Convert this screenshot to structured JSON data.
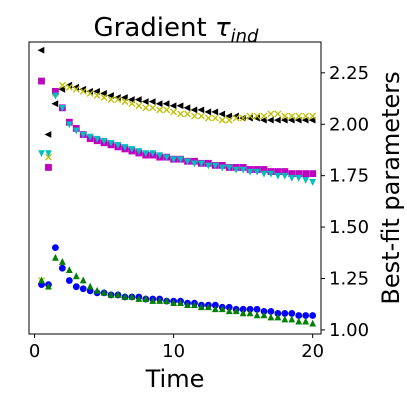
{
  "chart_data": {
    "type": "scatter",
    "title_main": "Gradient ",
    "title_tau": "τ",
    "title_sub": "ind",
    "xlabel": "Time",
    "ylabel": "Best-fit parameters",
    "xlim": [
      -0.4,
      20.6
    ],
    "ylim": [
      0.98,
      2.4
    ],
    "y_axis_side": "right",
    "grid": false,
    "legend": "none",
    "x_ticks": [
      0,
      10,
      20
    ],
    "y_ticks": [
      1.0,
      1.25,
      1.5,
      1.75,
      2.0,
      2.25
    ],
    "x_tick_labels": [
      "0",
      "10",
      "20"
    ],
    "y_tick_labels": [
      "1.00",
      "1.25",
      "1.50",
      "1.75",
      "2.00",
      "2.25"
    ],
    "series": [
      {
        "marker": "triangle-left",
        "color": "#000000",
        "x": [
          0.5,
          1.0,
          1.5,
          2.0,
          2.5,
          3.0,
          3.5,
          4.0,
          4.5,
          5.0,
          5.5,
          6.0,
          6.5,
          7.0,
          7.5,
          8.0,
          8.5,
          9.0,
          9.5,
          10.0,
          10.5,
          11.0,
          11.5,
          12.0,
          12.5,
          13.0,
          13.5,
          14.0,
          14.5,
          15.0,
          15.5,
          16.0,
          16.5,
          17.0,
          17.5,
          18.0,
          18.5,
          19.0,
          19.5,
          20.0
        ],
        "y": [
          2.36,
          1.95,
          2.1,
          2.17,
          2.19,
          2.18,
          2.17,
          2.16,
          2.16,
          2.15,
          2.14,
          2.13,
          2.13,
          2.12,
          2.12,
          2.11,
          2.11,
          2.1,
          2.1,
          2.09,
          2.09,
          2.08,
          2.07,
          2.07,
          2.06,
          2.06,
          2.05,
          2.04,
          2.04,
          2.03,
          2.03,
          2.03,
          2.02,
          2.02,
          2.02,
          2.02,
          2.02,
          2.02,
          2.02,
          2.02
        ]
      },
      {
        "marker": "x",
        "color": "#bfbf00",
        "x": [
          0.5,
          1.0,
          1.5,
          2.0,
          2.5,
          3.0,
          3.5,
          4.0,
          4.5,
          5.0,
          5.5,
          6.0,
          6.5,
          7.0,
          7.5,
          8.0,
          8.5,
          9.0,
          9.5,
          10.0,
          10.5,
          11.0,
          11.5,
          12.0,
          12.5,
          13.0,
          13.5,
          14.0,
          14.5,
          15.0,
          15.5,
          16.0,
          16.5,
          17.0,
          17.5,
          18.0,
          18.5,
          19.0,
          19.5,
          20.0
        ],
        "y": [
          1.24,
          1.84,
          2.15,
          2.19,
          2.18,
          2.17,
          2.16,
          2.15,
          2.14,
          2.13,
          2.12,
          2.12,
          2.11,
          2.1,
          2.09,
          2.08,
          2.08,
          2.07,
          2.07,
          2.06,
          2.05,
          2.05,
          2.04,
          2.04,
          2.03,
          2.03,
          2.02,
          2.02,
          2.03,
          2.03,
          2.04,
          2.04,
          2.04,
          2.05,
          2.05,
          2.04,
          2.04,
          2.04,
          2.04,
          2.04
        ]
      },
      {
        "marker": "square",
        "color": "#bf00bf",
        "x": [
          0.5,
          1.0,
          1.5,
          2.0,
          2.5,
          3.0,
          3.5,
          4.0,
          4.5,
          5.0,
          5.5,
          6.0,
          6.5,
          7.0,
          7.5,
          8.0,
          8.5,
          9.0,
          9.5,
          10.0,
          10.5,
          11.0,
          11.5,
          12.0,
          12.5,
          13.0,
          13.5,
          14.0,
          14.5,
          15.0,
          15.5,
          16.0,
          16.5,
          17.0,
          17.5,
          18.0,
          18.5,
          19.0,
          19.5,
          20.0
        ],
        "y": [
          2.21,
          1.79,
          2.16,
          2.08,
          2.01,
          1.98,
          1.95,
          1.93,
          1.92,
          1.91,
          1.9,
          1.89,
          1.88,
          1.87,
          1.86,
          1.85,
          1.85,
          1.84,
          1.84,
          1.83,
          1.83,
          1.82,
          1.82,
          1.81,
          1.81,
          1.8,
          1.8,
          1.79,
          1.79,
          1.79,
          1.78,
          1.78,
          1.78,
          1.77,
          1.77,
          1.77,
          1.76,
          1.76,
          1.76,
          1.76
        ]
      },
      {
        "marker": "triangle-down",
        "color": "#00bfbf",
        "x": [
          0.5,
          1.0,
          1.5,
          2.0,
          2.5,
          3.0,
          3.5,
          4.0,
          4.5,
          5.0,
          5.5,
          6.0,
          6.5,
          7.0,
          7.5,
          8.0,
          8.5,
          9.0,
          9.5,
          10.0,
          10.5,
          11.0,
          11.5,
          12.0,
          12.5,
          13.0,
          13.5,
          14.0,
          14.5,
          15.0,
          15.5,
          16.0,
          16.5,
          17.0,
          17.5,
          18.0,
          18.5,
          19.0,
          19.5,
          20.0
        ],
        "y": [
          1.86,
          1.86,
          2.14,
          2.08,
          2.0,
          1.97,
          1.95,
          1.94,
          1.93,
          1.92,
          1.91,
          1.9,
          1.89,
          1.88,
          1.87,
          1.86,
          1.86,
          1.85,
          1.84,
          1.83,
          1.83,
          1.82,
          1.81,
          1.81,
          1.8,
          1.8,
          1.79,
          1.79,
          1.78,
          1.78,
          1.77,
          1.77,
          1.76,
          1.76,
          1.75,
          1.75,
          1.74,
          1.74,
          1.73,
          1.72
        ]
      },
      {
        "marker": "circle",
        "color": "#0000ff",
        "x": [
          0.5,
          1.0,
          1.5,
          2.0,
          2.5,
          3.0,
          3.5,
          4.0,
          4.5,
          5.0,
          5.5,
          6.0,
          6.5,
          7.0,
          7.5,
          8.0,
          8.5,
          9.0,
          9.5,
          10.0,
          10.5,
          11.0,
          11.5,
          12.0,
          12.5,
          13.0,
          13.5,
          14.0,
          14.5,
          15.0,
          15.5,
          16.0,
          16.5,
          17.0,
          17.5,
          18.0,
          18.5,
          19.0,
          19.5,
          20.0
        ],
        "y": [
          1.22,
          1.22,
          1.4,
          1.3,
          1.24,
          1.21,
          1.2,
          1.19,
          1.18,
          1.18,
          1.17,
          1.17,
          1.16,
          1.16,
          1.16,
          1.15,
          1.15,
          1.15,
          1.14,
          1.14,
          1.14,
          1.13,
          1.13,
          1.12,
          1.12,
          1.12,
          1.11,
          1.11,
          1.1,
          1.1,
          1.1,
          1.1,
          1.09,
          1.09,
          1.08,
          1.08,
          1.08,
          1.07,
          1.07,
          1.07
        ]
      },
      {
        "marker": "triangle-up",
        "color": "#008000",
        "x": [
          0.5,
          1.0,
          1.5,
          2.0,
          2.5,
          3.0,
          3.5,
          4.0,
          4.5,
          5.0,
          5.5,
          6.0,
          6.5,
          7.0,
          7.5,
          8.0,
          8.5,
          9.0,
          9.5,
          10.0,
          10.5,
          11.0,
          11.5,
          12.0,
          12.5,
          13.0,
          13.5,
          14.0,
          14.5,
          15.0,
          15.5,
          16.0,
          16.5,
          17.0,
          17.5,
          18.0,
          18.5,
          19.0,
          19.5,
          20.0
        ],
        "y": [
          1.24,
          1.21,
          1.35,
          1.33,
          1.29,
          1.26,
          1.24,
          1.21,
          1.19,
          1.18,
          1.17,
          1.17,
          1.16,
          1.16,
          1.15,
          1.15,
          1.14,
          1.14,
          1.14,
          1.13,
          1.13,
          1.12,
          1.12,
          1.11,
          1.11,
          1.1,
          1.1,
          1.09,
          1.09,
          1.08,
          1.08,
          1.07,
          1.07,
          1.06,
          1.06,
          1.05,
          1.05,
          1.04,
          1.04,
          1.03
        ]
      }
    ]
  }
}
